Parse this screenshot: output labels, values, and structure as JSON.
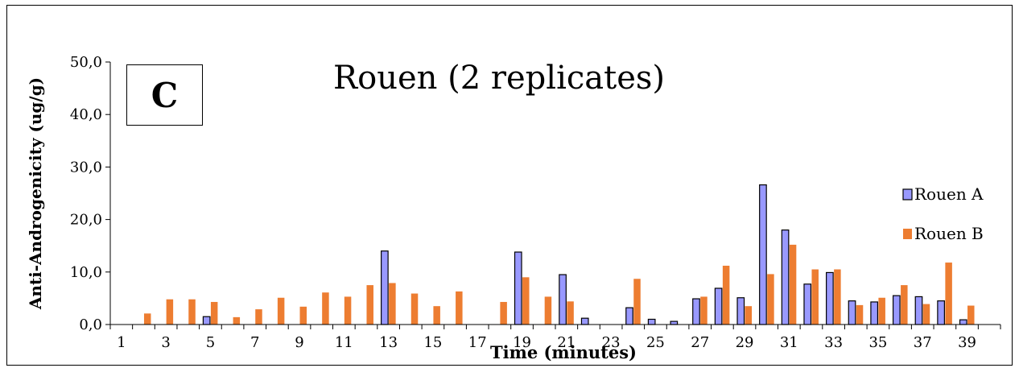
{
  "chart_data": {
    "type": "bar",
    "panel_letter": "C",
    "title": "Rouen (2 replicates)",
    "xlabel": "Time (minutes)",
    "ylabel": "Anti-Androgenicity (ug/g)",
    "ylim": [
      0,
      50
    ],
    "yticks": [
      "0,0",
      "10,0",
      "20,0",
      "30,0",
      "40,0",
      "50,0"
    ],
    "categories": [
      "1",
      "2",
      "3",
      "4",
      "5",
      "6",
      "7",
      "8",
      "9",
      "10",
      "11",
      "12",
      "13",
      "14",
      "15",
      "16",
      "17",
      "18",
      "19",
      "20",
      "21",
      "22",
      "23",
      "24",
      "25",
      "26",
      "27",
      "28",
      "29",
      "30",
      "31",
      "32",
      "33",
      "34",
      "35",
      "36",
      "37",
      "38",
      "39",
      "40"
    ],
    "x_tick_labels": [
      "1",
      "3",
      "5",
      "7",
      "9",
      "11",
      "13",
      "15",
      "17",
      "19",
      "21",
      "23",
      "25",
      "27",
      "29",
      "31",
      "33",
      "35",
      "37",
      "39"
    ],
    "legend_position": "right",
    "series": [
      {
        "name": "Rouen A",
        "color": "#9999ff",
        "values": [
          0,
          0,
          0,
          0,
          1.5,
          0,
          0,
          0,
          0,
          0,
          0,
          0,
          14.0,
          0,
          0,
          0,
          0,
          0,
          13.8,
          0,
          9.5,
          1.2,
          0,
          3.2,
          1.0,
          0.6,
          4.9,
          6.9,
          5.1,
          26.6,
          18.0,
          7.7,
          9.9,
          4.5,
          4.3,
          5.5,
          5.3,
          4.5,
          0.9,
          0
        ]
      },
      {
        "name": "Rouen B",
        "color": "#ed7d31",
        "values": [
          0,
          2.1,
          4.8,
          4.8,
          4.3,
          1.4,
          2.9,
          5.1,
          3.4,
          6.1,
          5.3,
          7.5,
          7.9,
          5.9,
          3.5,
          6.3,
          0,
          4.3,
          9.0,
          5.3,
          4.4,
          0,
          0,
          8.7,
          0,
          0,
          5.3,
          11.2,
          3.5,
          9.6,
          15.2,
          10.5,
          10.5,
          3.7,
          5.1,
          7.5,
          3.9,
          11.8,
          3.6,
          0
        ]
      }
    ]
  }
}
